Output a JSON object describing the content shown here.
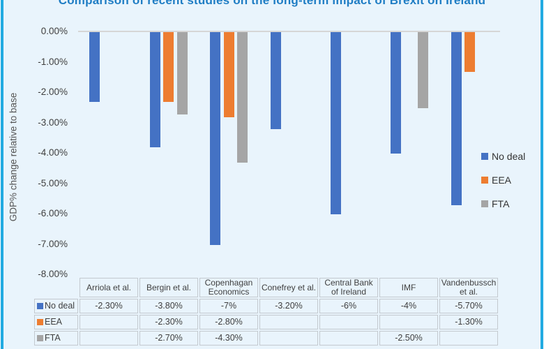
{
  "title": "Comparison of recent studies on the long-term impact of Brexit on Ireland",
  "chart_data": {
    "type": "bar",
    "title": "Comparison of recent studies on the long-term impact of Brexit on Ireland",
    "xlabel": "",
    "ylabel": "GDP% change relative to base",
    "ylim": [
      -8,
      0
    ],
    "yticks": [
      "0.00%",
      "-1.00%",
      "-2.00%",
      "-3.00%",
      "-4.00%",
      "-5.00%",
      "-6.00%",
      "-7.00%",
      "-8.00%"
    ],
    "grid": false,
    "legend_position": "right",
    "categories": [
      "Arriola et al.",
      "Bergin et al.",
      "Copenhagan Economics",
      "Conefrey et al.",
      "Central Bank of Ireland",
      "IMF",
      "Vandenbussch et al."
    ],
    "series": [
      {
        "name": "No deal",
        "color": "#4472c4",
        "values": [
          -2.3,
          -3.8,
          -7,
          -3.2,
          -6,
          -4,
          -5.7
        ],
        "table_labels": [
          "-2.30%",
          "-3.80%",
          "-7%",
          "-3.20%",
          "-6%",
          "-4%",
          "-5.70%"
        ]
      },
      {
        "name": "EEA",
        "color": "#ed7d31",
        "values": [
          null,
          -2.3,
          -2.8,
          null,
          null,
          null,
          -1.3
        ],
        "table_labels": [
          "",
          "-2.30%",
          "-2.80%",
          "",
          "",
          "",
          "-1.30%"
        ]
      },
      {
        "name": "FTA",
        "color": "#a5a5a5",
        "values": [
          null,
          -2.7,
          -4.3,
          null,
          null,
          -2.5,
          null
        ],
        "table_labels": [
          "",
          "-2.70%",
          "-4.30%",
          "",
          "",
          "-2.50%",
          ""
        ]
      }
    ]
  },
  "colors": {
    "background": "#e9f4fc",
    "frame_border": "#22aae1",
    "title": "#1f7dc4",
    "axis_line": "#d6d6d6",
    "no_deal": "#4472c4",
    "eea": "#ed7d31",
    "fta": "#a5a5a5"
  }
}
